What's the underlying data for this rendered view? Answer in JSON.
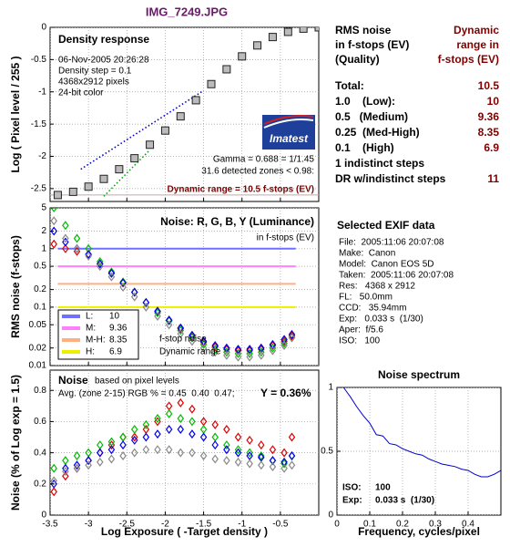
{
  "title": "IMG_7249.JPG",
  "chart_data": [
    {
      "type": "scatter",
      "title": "Density response",
      "ylabel": "Log ( Pixel level / 255 )",
      "ylim": [
        -2.7,
        0
      ],
      "yticks": [
        0,
        -0.5,
        -1,
        -1.5,
        -2,
        -2.5
      ],
      "grid": true,
      "annotations": [
        "06-Nov-2005 20:26:28",
        "Density step = 0.1",
        "4368x2912 pixels",
        "24-bit color",
        "Gamma = 0.688 = 1/1.45",
        "31.6 detected zones < 0.98:",
        "Dynamic range = 10.5 f-stops (EV)"
      ],
      "logo": "Imatest",
      "series": [
        {
          "color": "#c8a8a8",
          "x": [
            -3.5,
            0
          ],
          "values": [
            -2.6,
            -2.6
          ]
        },
        {
          "color": "#0000cc",
          "style": "dotted",
          "x": [
            -3.1,
            -1.5
          ],
          "values": [
            -2.2,
            -0.98
          ]
        },
        {
          "color": "#00aa00",
          "style": "dotted",
          "x": [
            -2.8,
            -2.2
          ],
          "values": [
            -2.62,
            -1.9
          ]
        },
        {
          "color": "#bbbbbb",
          "marker": "square",
          "x": [
            -3.4,
            -3.2,
            -3.0,
            -2.8,
            -2.6,
            -2.4,
            -2.2,
            -2.0,
            -1.8,
            -1.6,
            -1.4,
            -1.2,
            -1.0,
            -0.8,
            -0.6,
            -0.4,
            -0.2,
            0
          ],
          "values": [
            -2.6,
            -2.55,
            -2.47,
            -2.35,
            -2.2,
            -2.03,
            -1.82,
            -1.6,
            -1.38,
            -1.13,
            -0.88,
            -0.65,
            -0.45,
            -0.28,
            -0.15,
            -0.07,
            -0.02,
            0
          ]
        }
      ]
    },
    {
      "type": "scatter",
      "title": "Noise: R, G, B, Y (Luminance)",
      "ylabel": "RMS noise (f-stops)",
      "log": true,
      "ylim": [
        0.01,
        5
      ],
      "yticks": [
        0.01,
        0.02,
        0.05,
        0.1,
        0.2,
        0.5,
        1,
        2,
        5
      ],
      "grid": true,
      "annotations": [
        "in f-stops (EV)",
        "f-stop noise",
        "Dynamic range"
      ],
      "x": [
        -3.45,
        -3.3,
        -3.15,
        -3.0,
        -2.85,
        -2.7,
        -2.55,
        -2.4,
        -2.25,
        -2.1,
        -1.95,
        -1.8,
        -1.65,
        -1.5,
        -1.35,
        -1.2,
        -1.05,
        -0.9,
        -0.75,
        -0.6,
        -0.45,
        -0.35
      ],
      "thresholds": [
        {
          "name": "L:",
          "dr": 10,
          "color": "#7070ff",
          "x": [
            -3.4,
            -0.3
          ],
          "values": [
            1,
            1
          ]
        },
        {
          "name": "M:",
          "dr": 9.36,
          "color": "#ff80ff",
          "x": [
            -3.4,
            -0.3
          ],
          "values": [
            0.5,
            0.5
          ]
        },
        {
          "name": "M-H:",
          "dr": 8.35,
          "color": "#ffb080",
          "x": [
            -3.4,
            -0.3
          ],
          "values": [
            0.25,
            0.25
          ]
        },
        {
          "name": "H:",
          "dr": 6.9,
          "color": "#eeee00",
          "x": [
            -3.4,
            -0.3
          ],
          "values": [
            0.1,
            0.1
          ]
        }
      ],
      "series": [
        {
          "color": "#dd0000",
          "marker": "diamond",
          "values": [
            1.2,
            1.0,
            0.9,
            0.8,
            0.55,
            0.38,
            0.26,
            0.18,
            0.12,
            0.085,
            0.06,
            0.043,
            0.032,
            0.025,
            0.021,
            0.019,
            0.018,
            0.018,
            0.019,
            0.022,
            0.026,
            0.032
          ]
        },
        {
          "color": "#00bb00",
          "marker": "diamond",
          "values": [
            5,
            2.5,
            1.5,
            1.0,
            0.6,
            0.4,
            0.27,
            0.18,
            0.12,
            0.08,
            0.058,
            0.04,
            0.03,
            0.023,
            0.019,
            0.017,
            0.016,
            0.016,
            0.017,
            0.02,
            0.024,
            0.03
          ]
        },
        {
          "color": "#0000ee",
          "marker": "diamond",
          "values": [
            2,
            1.3,
            1.0,
            0.8,
            0.55,
            0.38,
            0.26,
            0.18,
            0.12,
            0.085,
            0.06,
            0.044,
            0.033,
            0.026,
            0.022,
            0.02,
            0.019,
            0.019,
            0.02,
            0.023,
            0.028,
            0.034
          ]
        },
        {
          "color": "#888888",
          "marker": "diamond",
          "values": [
            3,
            1.5,
            1.0,
            0.75,
            0.5,
            0.33,
            0.22,
            0.15,
            0.1,
            0.07,
            0.05,
            0.035,
            0.026,
            0.02,
            0.017,
            0.015,
            0.014,
            0.014,
            0.015,
            0.018,
            0.022,
            0.03
          ]
        }
      ]
    },
    {
      "type": "scatter",
      "title": "Noise",
      "ylabel": "Noise (% of Log exp = 1.5)",
      "xlabel": "Log Exposure ( -Target density )",
      "xlim": [
        -3.5,
        0
      ],
      "xticks": [
        -3.5,
        -3,
        -2.5,
        -2,
        -1.5,
        -1,
        -0.5
      ],
      "ylim": [
        0,
        0.93
      ],
      "yticks": [
        0,
        0.2,
        0.4,
        0.6,
        0.8
      ],
      "grid": true,
      "annotations": [
        "based on pixel levels",
        "Avg. (zone 2-15) RGB % = 0.45  0.40  0.47;",
        "Y = 0.36%"
      ],
      "x": [
        -3.45,
        -3.3,
        -3.15,
        -3.0,
        -2.85,
        -2.7,
        -2.55,
        -2.4,
        -2.25,
        -2.1,
        -1.95,
        -1.8,
        -1.65,
        -1.5,
        -1.35,
        -1.2,
        -1.05,
        -0.9,
        -0.75,
        -0.6,
        -0.45,
        -0.35
      ],
      "series": [
        {
          "color": "#dd0000",
          "marker": "diamond",
          "values": [
            0.15,
            0.25,
            0.3,
            0.35,
            0.4,
            0.45,
            0.5,
            0.5,
            0.55,
            0.6,
            0.7,
            0.72,
            0.68,
            0.6,
            0.58,
            0.55,
            0.5,
            0.48,
            0.45,
            0.42,
            0.4,
            0.5
          ]
        },
        {
          "color": "#00bb00",
          "marker": "diamond",
          "values": [
            0.3,
            0.35,
            0.38,
            0.4,
            0.45,
            0.47,
            0.5,
            0.55,
            0.58,
            0.62,
            0.65,
            0.62,
            0.6,
            0.55,
            0.5,
            0.45,
            0.42,
            0.4,
            0.38,
            0.35,
            0.33,
            0.38
          ]
        },
        {
          "color": "#0000ee",
          "marker": "diamond",
          "values": [
            0.2,
            0.3,
            0.32,
            0.35,
            0.4,
            0.42,
            0.45,
            0.48,
            0.5,
            0.52,
            0.55,
            0.55,
            0.52,
            0.5,
            0.45,
            0.42,
            0.4,
            0.38,
            0.37,
            0.35,
            0.34,
            0.38
          ]
        },
        {
          "color": "#888888",
          "marker": "diamond",
          "values": [
            0.22,
            0.28,
            0.3,
            0.32,
            0.34,
            0.36,
            0.38,
            0.4,
            0.42,
            0.42,
            0.42,
            0.4,
            0.4,
            0.38,
            0.36,
            0.35,
            0.34,
            0.33,
            0.32,
            0.31,
            0.3,
            0.32
          ]
        }
      ]
    },
    {
      "type": "line",
      "title": "Noise spectrum",
      "xlabel": "Frequency, cycles/pixel",
      "xlim": [
        0,
        0.5
      ],
      "xticks": [
        0,
        0.1,
        0.2,
        0.3,
        0.4
      ],
      "ylim": [
        0,
        1
      ],
      "yticks": [
        0,
        0.5,
        1
      ],
      "grid": true,
      "annotations": [
        "ISO:",
        "100",
        "Exp:",
        "0.033 s  (1/30)"
      ],
      "series": [
        {
          "color": "#0000cc",
          "x": [
            0.02,
            0.04,
            0.06,
            0.08,
            0.1,
            0.12,
            0.14,
            0.16,
            0.18,
            0.2,
            0.22,
            0.24,
            0.26,
            0.28,
            0.3,
            0.32,
            0.34,
            0.36,
            0.38,
            0.4,
            0.42,
            0.44,
            0.46,
            0.48,
            0.5
          ],
          "values": [
            1,
            0.93,
            0.85,
            0.78,
            0.72,
            0.63,
            0.62,
            0.56,
            0.55,
            0.52,
            0.5,
            0.48,
            0.47,
            0.44,
            0.42,
            0.4,
            0.39,
            0.38,
            0.36,
            0.35,
            0.32,
            0.3,
            0.3,
            0.32,
            0.35
          ]
        }
      ]
    }
  ],
  "info": {
    "left_header": [
      "RMS noise",
      "in f-stops (EV)",
      "(Quality)"
    ],
    "right_header": [
      "Dynamic",
      "range in",
      "f-stops (EV)"
    ],
    "rows": [
      {
        "label": "Total:",
        "value": 10.5
      },
      {
        "label": "1.0    (Low):",
        "value": 10
      },
      {
        "label": "0.5   (Medium)",
        "value": 9.36
      },
      {
        "label": "0.25  (Med-High)",
        "value": 8.35
      },
      {
        "label": "0.1    (High)",
        "value": 6.9
      },
      {
        "label": "1 indistinct steps"
      },
      {
        "label": "DR w/indistinct steps",
        "value": 11
      }
    ],
    "exif_title": "Selected EXIF data",
    "exif": [
      "File:  2005:11:06 20:07:08",
      "Make:  Canon",
      "Model:  Canon EOS 5D",
      "Taken:  2005:11:06 20:07:08",
      "Res:   4368 x 2912",
      "FL:   50.0mm",
      "CCD:   35.94mm",
      "Exp:   0.033 s  (1/30)",
      "Aper:  f/5.6",
      "ISO:   100"
    ]
  }
}
